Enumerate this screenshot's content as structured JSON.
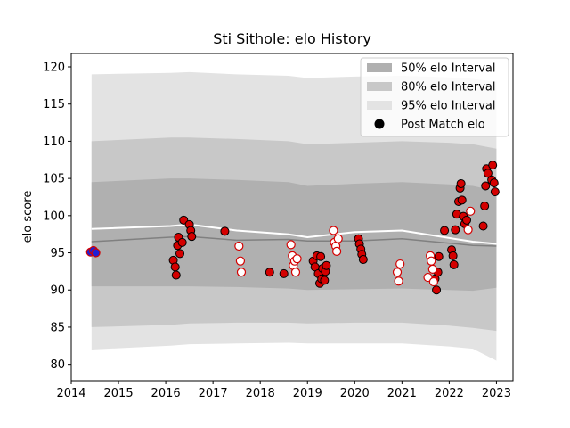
{
  "chart_data": {
    "type": "scatter",
    "title": "Sti Sithole: elo History",
    "xlabel": "",
    "ylabel": "elo score",
    "xlim": [
      2014.0,
      2023.35
    ],
    "ylim": [
      77.8,
      121.8
    ],
    "xticks": [
      2014,
      2015,
      2016,
      2017,
      2018,
      2019,
      2020,
      2021,
      2022,
      2023
    ],
    "yticks": [
      80,
      85,
      90,
      95,
      100,
      105,
      110,
      115,
      120
    ],
    "legend_position": "top-right",
    "legend": [
      {
        "label": "50% elo Interval",
        "kind": "band",
        "color": "#b0b0b0"
      },
      {
        "label": "80% elo Interval",
        "kind": "band",
        "color": "#c8c8c8"
      },
      {
        "label": "95% elo Interval",
        "kind": "band",
        "color": "#e3e3e3"
      },
      {
        "label": "Post Match elo",
        "kind": "marker",
        "color": "#000000"
      }
    ],
    "colors": {
      "band95": "#e3e3e3",
      "band80": "#c8c8c8",
      "band50": "#b0b0b0",
      "median_line": "#808080",
      "mean_line": "#ffffff",
      "win_fill": "#d40000",
      "loss_fill": "#ffffff",
      "loss_edge": "#d40000",
      "initial_fill": "#1f1fd4"
    },
    "bands": {
      "x": [
        2014.43,
        2016.1,
        2016.5,
        2017.5,
        2018.6,
        2019.0,
        2020.0,
        2021.0,
        2022.0,
        2022.5,
        2023.0
      ],
      "q025": [
        82.0,
        82.5,
        82.7,
        82.8,
        82.9,
        82.8,
        82.8,
        82.8,
        82.4,
        82.1,
        80.5
      ],
      "q10": [
        85.0,
        85.3,
        85.5,
        85.6,
        85.6,
        85.5,
        85.6,
        85.6,
        85.2,
        84.9,
        84.5
      ],
      "q25": [
        90.5,
        90.5,
        90.5,
        90.4,
        90.2,
        90.0,
        90.1,
        90.2,
        90.0,
        89.9,
        90.3
      ],
      "q75": [
        104.5,
        105.0,
        105.0,
        104.8,
        104.5,
        104.0,
        104.3,
        104.5,
        104.2,
        104.0,
        103.3
      ],
      "q90": [
        110.0,
        110.5,
        110.5,
        110.3,
        110.0,
        109.6,
        109.8,
        110.0,
        109.8,
        109.6,
        109.0
      ],
      "q975": [
        119.0,
        119.2,
        119.3,
        119.0,
        118.8,
        118.5,
        118.7,
        118.8,
        118.6,
        118.4,
        118.0
      ],
      "median": [
        96.5,
        97.1,
        97.2,
        96.7,
        96.8,
        96.6,
        96.6,
        96.9,
        96.3,
        96.0,
        95.9
      ],
      "mean": [
        98.2,
        98.6,
        98.8,
        98.0,
        97.5,
        97.1,
        97.8,
        98.0,
        97.0,
        96.5,
        96.2
      ]
    },
    "initial_points": [
      {
        "x": 2014.41,
        "y": 95.1
      },
      {
        "x": 2014.47,
        "y": 95.3
      },
      {
        "x": 2014.52,
        "y": 95.0
      }
    ],
    "wins": [
      {
        "x": 2016.16,
        "y": 94.0
      },
      {
        "x": 2016.2,
        "y": 93.1
      },
      {
        "x": 2016.22,
        "y": 92.0
      },
      {
        "x": 2016.25,
        "y": 96.0
      },
      {
        "x": 2016.27,
        "y": 97.1
      },
      {
        "x": 2016.3,
        "y": 94.9
      },
      {
        "x": 2016.35,
        "y": 96.4
      },
      {
        "x": 2016.38,
        "y": 99.4
      },
      {
        "x": 2016.5,
        "y": 98.8
      },
      {
        "x": 2016.53,
        "y": 98.0
      },
      {
        "x": 2016.55,
        "y": 97.2
      },
      {
        "x": 2017.25,
        "y": 97.9
      },
      {
        "x": 2018.2,
        "y": 92.4
      },
      {
        "x": 2018.5,
        "y": 92.2
      },
      {
        "x": 2019.12,
        "y": 93.9
      },
      {
        "x": 2019.16,
        "y": 93.1
      },
      {
        "x": 2019.2,
        "y": 94.6
      },
      {
        "x": 2019.23,
        "y": 92.2
      },
      {
        "x": 2019.26,
        "y": 90.9
      },
      {
        "x": 2019.28,
        "y": 94.5
      },
      {
        "x": 2019.3,
        "y": 91.5
      },
      {
        "x": 2019.32,
        "y": 92.9
      },
      {
        "x": 2019.36,
        "y": 91.3
      },
      {
        "x": 2019.38,
        "y": 92.5
      },
      {
        "x": 2019.4,
        "y": 93.3
      },
      {
        "x": 2020.08,
        "y": 96.9
      },
      {
        "x": 2020.1,
        "y": 96.2
      },
      {
        "x": 2020.13,
        "y": 95.5
      },
      {
        "x": 2020.15,
        "y": 94.8
      },
      {
        "x": 2020.18,
        "y": 94.1
      },
      {
        "x": 2021.7,
        "y": 91.5
      },
      {
        "x": 2021.73,
        "y": 90.0
      },
      {
        "x": 2021.76,
        "y": 92.4
      },
      {
        "x": 2021.78,
        "y": 94.5
      },
      {
        "x": 2021.9,
        "y": 98.0
      },
      {
        "x": 2022.05,
        "y": 95.4
      },
      {
        "x": 2022.08,
        "y": 94.6
      },
      {
        "x": 2022.1,
        "y": 93.4
      },
      {
        "x": 2022.13,
        "y": 98.1
      },
      {
        "x": 2022.16,
        "y": 100.2
      },
      {
        "x": 2022.2,
        "y": 101.9
      },
      {
        "x": 2022.23,
        "y": 103.7
      },
      {
        "x": 2022.25,
        "y": 104.3
      },
      {
        "x": 2022.27,
        "y": 102.1
      },
      {
        "x": 2022.3,
        "y": 99.9
      },
      {
        "x": 2022.33,
        "y": 98.9
      },
      {
        "x": 2022.37,
        "y": 99.4
      },
      {
        "x": 2022.72,
        "y": 98.6
      },
      {
        "x": 2022.75,
        "y": 101.3
      },
      {
        "x": 2022.77,
        "y": 104.0
      },
      {
        "x": 2022.79,
        "y": 106.3
      },
      {
        "x": 2022.82,
        "y": 105.7
      },
      {
        "x": 2022.9,
        "y": 104.8
      },
      {
        "x": 2022.92,
        "y": 106.8
      },
      {
        "x": 2022.95,
        "y": 104.4
      },
      {
        "x": 2022.97,
        "y": 103.2
      }
    ],
    "losses": [
      {
        "x": 2017.55,
        "y": 95.9
      },
      {
        "x": 2017.58,
        "y": 93.9
      },
      {
        "x": 2017.6,
        "y": 92.4
      },
      {
        "x": 2018.65,
        "y": 96.1
      },
      {
        "x": 2018.68,
        "y": 94.6
      },
      {
        "x": 2018.7,
        "y": 93.3
      },
      {
        "x": 2018.73,
        "y": 93.9
      },
      {
        "x": 2018.75,
        "y": 92.4
      },
      {
        "x": 2018.78,
        "y": 94.2
      },
      {
        "x": 2019.55,
        "y": 98.0
      },
      {
        "x": 2019.57,
        "y": 96.4
      },
      {
        "x": 2019.6,
        "y": 95.9
      },
      {
        "x": 2019.62,
        "y": 95.2
      },
      {
        "x": 2019.65,
        "y": 96.9
      },
      {
        "x": 2020.9,
        "y": 92.4
      },
      {
        "x": 2020.93,
        "y": 91.2
      },
      {
        "x": 2020.96,
        "y": 93.5
      },
      {
        "x": 2021.55,
        "y": 91.7
      },
      {
        "x": 2021.6,
        "y": 94.6
      },
      {
        "x": 2021.62,
        "y": 93.9
      },
      {
        "x": 2021.65,
        "y": 92.8
      },
      {
        "x": 2021.67,
        "y": 91.1
      },
      {
        "x": 2022.4,
        "y": 98.1
      },
      {
        "x": 2022.45,
        "y": 100.6
      }
    ]
  }
}
